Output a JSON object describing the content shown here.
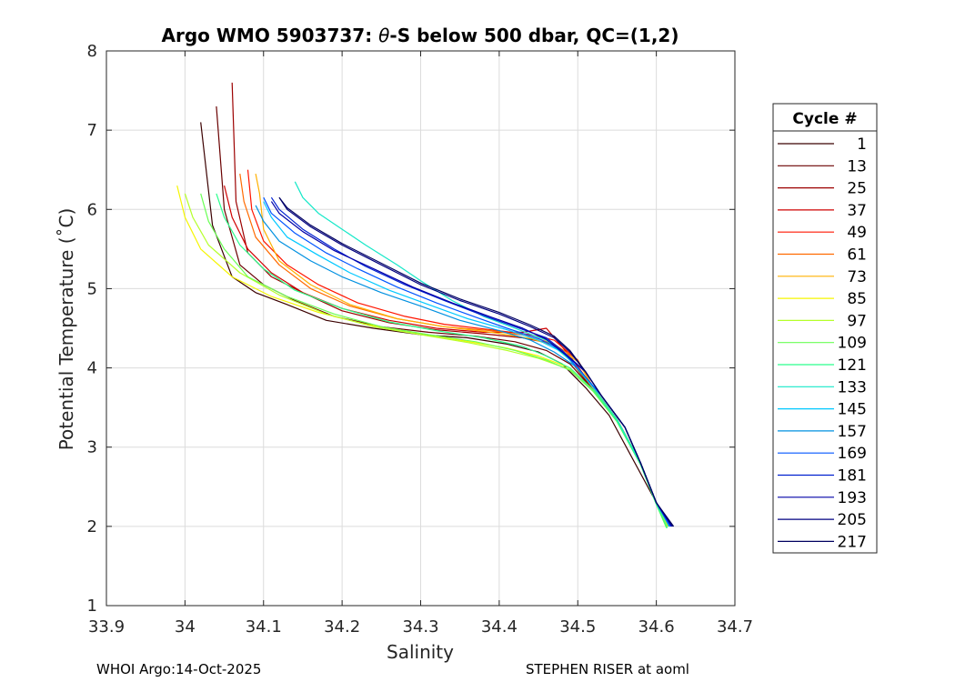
{
  "chart_data": {
    "type": "line",
    "title_prefix": "Argo WMO 5903737: ",
    "title_symbol": "θ",
    "title_suffix": "-S below 500 dbar,  QC=(1,2)",
    "xlabel": "Salinity",
    "ylabel": "Potential Temperature (˚C)",
    "xlim": [
      33.9,
      34.7
    ],
    "ylim": [
      1,
      8
    ],
    "x_ticks": [
      33.9,
      34,
      34.1,
      34.2,
      34.3,
      34.4,
      34.5,
      34.6,
      34.7
    ],
    "x_tick_labels": [
      "33.9",
      "34",
      "34.1",
      "34.2",
      "34.3",
      "34.4",
      "34.5",
      "34.6",
      "34.7"
    ],
    "y_ticks": [
      1,
      2,
      3,
      4,
      5,
      6,
      7,
      8
    ],
    "y_tick_labels": [
      "1",
      "2",
      "3",
      "4",
      "5",
      "6",
      "7",
      "8"
    ],
    "grid": true,
    "legend_title": "Cycle #",
    "legend_position": "outside-right",
    "legend": [
      {
        "label": "1",
        "color": "#3b0000"
      },
      {
        "label": "13",
        "color": "#6a0000"
      },
      {
        "label": "25",
        "color": "#9c0000"
      },
      {
        "label": "37",
        "color": "#cf0000"
      },
      {
        "label": "49",
        "color": "#ff1500"
      },
      {
        "label": "61",
        "color": "#ff6a00"
      },
      {
        "label": "73",
        "color": "#ffb000"
      },
      {
        "label": "85",
        "color": "#f5f500"
      },
      {
        "label": "97",
        "color": "#b5ff2a"
      },
      {
        "label": "109",
        "color": "#6aff55"
      },
      {
        "label": "121",
        "color": "#2aff8c"
      },
      {
        "label": "133",
        "color": "#15e8c8"
      },
      {
        "label": "145",
        "color": "#00c8ff"
      },
      {
        "label": "157",
        "color": "#0090e0"
      },
      {
        "label": "169",
        "color": "#0055ff"
      },
      {
        "label": "181",
        "color": "#0020d0"
      },
      {
        "label": "193",
        "color": "#0000a8"
      },
      {
        "label": "205",
        "color": "#000080"
      },
      {
        "label": "217",
        "color": "#000060"
      }
    ],
    "series": [
      {
        "name": "1",
        "x": [
          34.02,
          34.035,
          34.06,
          34.09,
          34.13,
          34.18,
          34.24,
          34.3,
          34.36,
          34.41,
          34.45,
          34.48,
          34.51,
          34.54,
          34.57,
          34.6,
          34.615
        ],
        "y": [
          7.1,
          5.8,
          5.15,
          4.95,
          4.8,
          4.6,
          4.5,
          4.42,
          4.38,
          4.3,
          4.2,
          4.05,
          3.75,
          3.4,
          2.85,
          2.3,
          2.02
        ]
      },
      {
        "name": "13",
        "x": [
          34.04,
          34.05,
          34.07,
          34.1,
          34.14,
          34.19,
          34.25,
          34.31,
          34.37,
          34.42,
          34.46,
          34.49,
          34.52,
          34.55,
          34.58,
          34.6,
          34.615
        ],
        "y": [
          7.3,
          6.0,
          5.3,
          5.05,
          4.85,
          4.65,
          4.52,
          4.45,
          4.4,
          4.33,
          4.22,
          4.05,
          3.72,
          3.35,
          2.8,
          2.3,
          2.02
        ]
      },
      {
        "name": "25",
        "x": [
          34.06,
          34.065,
          34.08,
          34.11,
          34.15,
          34.2,
          34.26,
          34.32,
          34.38,
          34.43,
          34.47,
          34.49,
          34.52,
          34.55,
          34.58,
          34.6,
          34.617
        ],
        "y": [
          7.6,
          6.1,
          5.45,
          5.15,
          4.95,
          4.72,
          4.57,
          4.48,
          4.43,
          4.38,
          4.3,
          4.1,
          3.72,
          3.35,
          2.8,
          2.3,
          2.0
        ]
      },
      {
        "name": "37",
        "x": [
          34.05,
          34.06,
          34.08,
          34.11,
          34.15,
          34.2,
          34.26,
          34.32,
          34.38,
          34.43,
          34.46,
          34.49,
          34.52,
          34.55,
          34.58,
          34.6,
          34.616
        ],
        "y": [
          6.3,
          5.9,
          5.5,
          5.2,
          4.95,
          4.75,
          4.6,
          4.5,
          4.45,
          4.45,
          4.5,
          4.15,
          3.75,
          3.35,
          2.8,
          2.3,
          2.0
        ]
      },
      {
        "name": "49",
        "x": [
          34.08,
          34.085,
          34.1,
          34.13,
          34.17,
          34.22,
          34.28,
          34.33,
          34.39,
          34.44,
          34.47,
          34.5,
          34.52,
          34.55,
          34.58,
          34.6,
          34.616
        ],
        "y": [
          6.5,
          6.0,
          5.6,
          5.3,
          5.05,
          4.82,
          4.65,
          4.55,
          4.48,
          4.42,
          4.35,
          4.1,
          3.75,
          3.35,
          2.8,
          2.3,
          2.0
        ]
      },
      {
        "name": "61",
        "x": [
          34.07,
          34.075,
          34.09,
          34.12,
          34.16,
          34.21,
          34.27,
          34.33,
          34.39,
          34.44,
          34.47,
          34.5,
          34.52,
          34.55,
          34.58,
          34.6,
          34.615
        ],
        "y": [
          6.45,
          6.1,
          5.65,
          5.3,
          5.0,
          4.78,
          4.62,
          4.52,
          4.47,
          4.4,
          4.3,
          4.1,
          3.75,
          3.35,
          2.8,
          2.3,
          2.0
        ]
      },
      {
        "name": "73",
        "x": [
          34.09,
          34.095,
          34.1,
          34.12,
          34.16,
          34.21,
          34.27,
          34.33,
          34.39,
          34.44,
          34.47,
          34.5,
          34.52,
          34.55,
          34.58,
          34.6,
          34.615
        ],
        "y": [
          6.45,
          6.2,
          5.75,
          5.35,
          5.05,
          4.8,
          4.62,
          4.52,
          4.45,
          4.37,
          4.28,
          4.08,
          3.75,
          3.35,
          2.8,
          2.3,
          2.0
        ]
      },
      {
        "name": "85",
        "x": [
          33.99,
          34.0,
          34.02,
          34.06,
          34.11,
          34.17,
          34.23,
          34.29,
          34.35,
          34.41,
          34.45,
          34.49,
          34.52,
          34.55,
          34.58,
          34.6,
          34.614
        ],
        "y": [
          6.3,
          5.9,
          5.5,
          5.15,
          4.9,
          4.7,
          4.55,
          4.45,
          4.35,
          4.25,
          4.15,
          4.0,
          3.72,
          3.35,
          2.8,
          2.3,
          2.0
        ]
      },
      {
        "name": "97",
        "x": [
          34.0,
          34.01,
          34.03,
          34.07,
          34.12,
          34.18,
          34.24,
          34.3,
          34.36,
          34.41,
          34.45,
          34.49,
          34.52,
          34.55,
          34.58,
          34.6,
          34.613
        ],
        "y": [
          6.2,
          5.9,
          5.55,
          5.2,
          4.92,
          4.68,
          4.52,
          4.42,
          4.32,
          4.22,
          4.12,
          3.98,
          3.7,
          3.32,
          2.78,
          2.28,
          1.98
        ]
      },
      {
        "name": "109",
        "x": [
          34.02,
          34.03,
          34.05,
          34.08,
          34.13,
          34.19,
          34.25,
          34.31,
          34.37,
          34.42,
          34.46,
          34.49,
          34.52,
          34.55,
          34.58,
          34.6,
          34.613
        ],
        "y": [
          6.2,
          5.85,
          5.5,
          5.15,
          4.9,
          4.68,
          4.52,
          4.42,
          4.33,
          4.22,
          4.1,
          3.97,
          3.7,
          3.32,
          2.78,
          2.28,
          1.98
        ]
      },
      {
        "name": "121",
        "x": [
          34.04,
          34.05,
          34.07,
          34.1,
          34.14,
          34.2,
          34.26,
          34.32,
          34.38,
          34.43,
          34.46,
          34.49,
          34.52,
          34.55,
          34.58,
          34.6,
          34.614
        ],
        "y": [
          6.2,
          5.9,
          5.55,
          5.25,
          4.98,
          4.75,
          4.58,
          4.47,
          4.38,
          4.27,
          4.15,
          4.0,
          3.72,
          3.33,
          2.78,
          2.28,
          1.98
        ]
      },
      {
        "name": "133",
        "x": [
          34.14,
          34.15,
          34.17,
          34.2,
          34.23,
          34.27,
          34.3,
          34.34,
          34.38,
          34.42,
          34.46,
          34.49,
          34.52,
          34.55,
          34.58,
          34.6,
          34.616
        ],
        "y": [
          6.35,
          6.15,
          5.95,
          5.75,
          5.55,
          5.3,
          5.1,
          4.85,
          4.65,
          4.5,
          4.35,
          4.1,
          3.75,
          3.35,
          2.8,
          2.3,
          2.0
        ]
      },
      {
        "name": "145",
        "x": [
          34.1,
          34.11,
          34.13,
          34.17,
          34.21,
          34.26,
          34.31,
          34.36,
          34.41,
          34.45,
          34.48,
          34.5,
          34.53,
          34.56,
          34.58,
          34.6,
          34.617
        ],
        "y": [
          6.1,
          5.9,
          5.65,
          5.42,
          5.2,
          4.98,
          4.8,
          4.62,
          4.48,
          4.35,
          4.2,
          4.0,
          3.65,
          3.25,
          2.8,
          2.3,
          2.0
        ]
      },
      {
        "name": "157",
        "x": [
          34.09,
          34.1,
          34.12,
          34.16,
          34.2,
          34.25,
          34.3,
          34.35,
          34.4,
          34.44,
          34.47,
          34.5,
          34.53,
          34.56,
          34.58,
          34.6,
          34.617
        ],
        "y": [
          6.05,
          5.85,
          5.6,
          5.35,
          5.15,
          4.95,
          4.78,
          4.6,
          4.47,
          4.35,
          4.2,
          4.0,
          3.65,
          3.25,
          2.8,
          2.3,
          2.0
        ]
      },
      {
        "name": "169",
        "x": [
          34.1,
          34.11,
          34.14,
          34.18,
          34.22,
          34.27,
          34.32,
          34.37,
          34.41,
          34.45,
          34.48,
          34.5,
          34.53,
          34.56,
          34.58,
          34.6,
          34.618
        ],
        "y": [
          6.15,
          5.95,
          5.7,
          5.45,
          5.25,
          5.02,
          4.82,
          4.64,
          4.5,
          4.37,
          4.22,
          4.0,
          3.65,
          3.25,
          2.8,
          2.3,
          2.0
        ]
      },
      {
        "name": "181",
        "x": [
          34.11,
          34.12,
          34.15,
          34.19,
          34.23,
          34.28,
          34.33,
          34.38,
          34.42,
          34.46,
          34.48,
          34.51,
          34.53,
          34.56,
          34.58,
          34.6,
          34.619
        ],
        "y": [
          6.15,
          6.0,
          5.75,
          5.5,
          5.28,
          5.05,
          4.85,
          4.66,
          4.52,
          4.38,
          4.22,
          3.95,
          3.65,
          3.25,
          2.8,
          2.3,
          2.0
        ]
      },
      {
        "name": "193",
        "x": [
          34.11,
          34.12,
          34.15,
          34.19,
          34.24,
          34.29,
          34.34,
          34.39,
          34.43,
          34.46,
          34.48,
          34.51,
          34.53,
          34.56,
          34.58,
          34.6,
          34.62
        ],
        "y": [
          6.1,
          5.95,
          5.72,
          5.48,
          5.25,
          5.02,
          4.82,
          4.64,
          4.5,
          4.36,
          4.2,
          3.95,
          3.65,
          3.25,
          2.8,
          2.3,
          2.0
        ]
      },
      {
        "name": "205",
        "x": [
          34.12,
          34.13,
          34.16,
          34.2,
          34.25,
          34.3,
          34.35,
          34.4,
          34.44,
          34.47,
          34.49,
          34.51,
          34.53,
          34.56,
          34.58,
          34.6,
          34.621
        ],
        "y": [
          6.15,
          6.0,
          5.78,
          5.55,
          5.3,
          5.05,
          4.85,
          4.68,
          4.52,
          4.38,
          4.2,
          3.95,
          3.65,
          3.25,
          2.8,
          2.3,
          2.0
        ]
      },
      {
        "name": "217",
        "x": [
          34.12,
          34.13,
          34.16,
          34.2,
          34.25,
          34.3,
          34.35,
          34.4,
          34.44,
          34.47,
          34.49,
          34.51,
          34.53,
          34.56,
          34.58,
          34.6,
          34.622
        ],
        "y": [
          6.15,
          6.02,
          5.8,
          5.57,
          5.32,
          5.07,
          4.87,
          4.7,
          4.54,
          4.4,
          4.22,
          3.95,
          3.65,
          3.25,
          2.8,
          2.3,
          2.0
        ]
      }
    ]
  },
  "footer": {
    "left": "WHOI Argo:14-Oct-2025",
    "right": "STEPHEN RISER at aoml"
  }
}
